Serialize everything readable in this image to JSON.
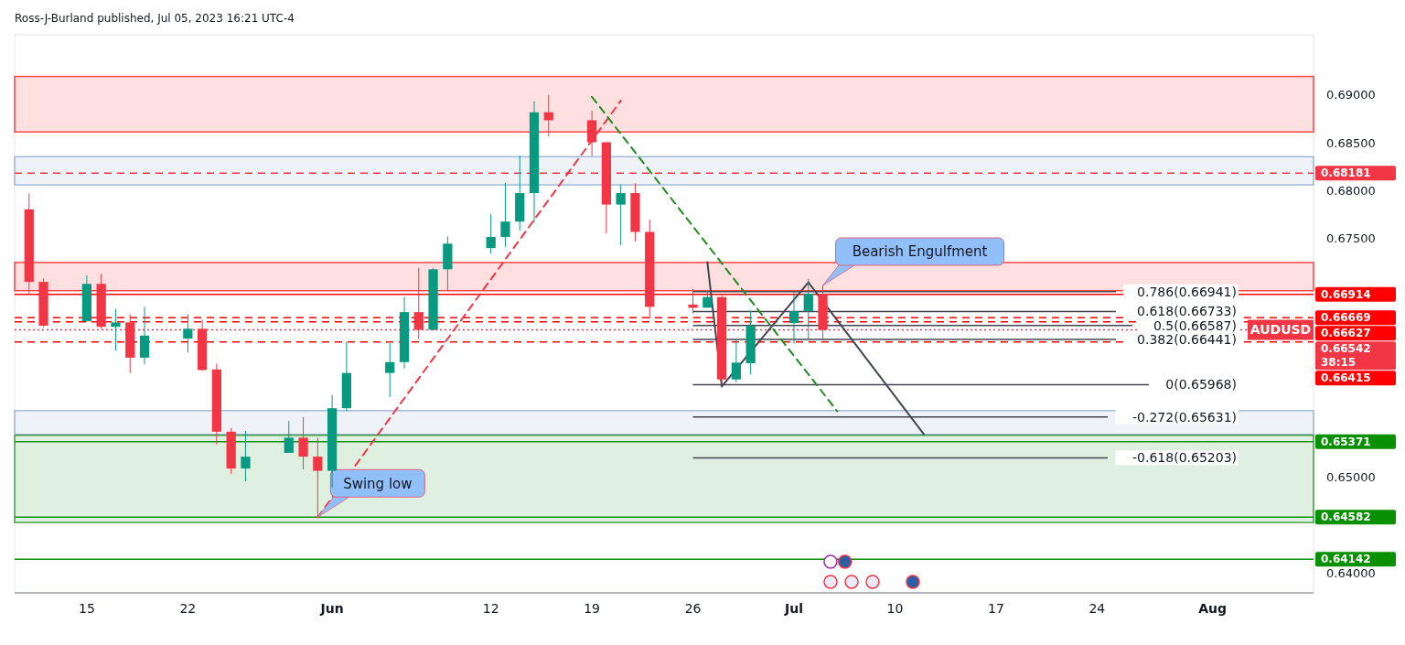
{
  "chart_data": {
    "type": "candlestick",
    "title": "Ross-J-Burland published, Jul 05, 2023 16:21 UTC-4",
    "x": [
      "2023-05-11",
      "2023-05-12",
      "2023-05-15",
      "2023-05-16",
      "2023-05-17",
      "2023-05-18",
      "2023-05-19",
      "2023-05-22",
      "2023-05-23",
      "2023-05-24",
      "2023-05-25",
      "2023-05-26",
      "2023-05-29",
      "2023-05-30",
      "2023-05-31",
      "2023-06-01",
      "2023-06-02",
      "2023-06-05",
      "2023-06-06",
      "2023-06-07",
      "2023-06-08",
      "2023-06-09",
      "2023-06-12",
      "2023-06-13",
      "2023-06-14",
      "2023-06-15",
      "2023-06-16",
      "2023-06-19",
      "2023-06-20",
      "2023-06-21",
      "2023-06-22",
      "2023-06-23",
      "2023-06-26",
      "2023-06-27",
      "2023-06-28",
      "2023-06-29",
      "2023-06-30",
      "2023-07-03",
      "2023-07-04",
      "2023-07-05"
    ],
    "ohlc": [
      [
        0.67803,
        0.67973,
        0.66922,
        0.67044
      ],
      [
        0.67044,
        0.67081,
        0.66571,
        0.66586
      ],
      [
        0.66632,
        0.67112,
        0.66626,
        0.67023
      ],
      [
        0.67023,
        0.67127,
        0.66553,
        0.66574
      ],
      [
        0.66574,
        0.66761,
        0.66322,
        0.6662
      ],
      [
        0.6662,
        0.66706,
        0.66091,
        0.66251
      ],
      [
        0.66251,
        0.66783,
        0.66183,
        0.66482
      ],
      [
        0.66451,
        0.66706,
        0.66306,
        0.66553
      ],
      [
        0.66553,
        0.6665,
        0.66113,
        0.66122
      ],
      [
        0.66128,
        0.66189,
        0.65344,
        0.65476
      ],
      [
        0.65476,
        0.65513,
        0.65036,
        0.65091
      ],
      [
        0.65091,
        0.65485,
        0.64959,
        0.65215
      ],
      [
        0.65255,
        0.65589,
        0.65255,
        0.65414
      ],
      [
        0.65414,
        0.6563,
        0.65082,
        0.65215
      ],
      [
        0.65215,
        0.65414,
        0.64582,
        0.65067
      ],
      [
        0.65067,
        0.65861,
        0.64892,
        0.65722
      ],
      [
        0.65722,
        0.6642,
        0.65691,
        0.66091
      ],
      [
        0.66091,
        0.66408,
        0.65839,
        0.66205
      ],
      [
        0.66205,
        0.66885,
        0.66137,
        0.66728
      ],
      [
        0.66728,
        0.67192,
        0.66445,
        0.66543
      ],
      [
        0.66543,
        0.6719,
        0.66535,
        0.67176
      ],
      [
        0.67176,
        0.67521,
        0.66958,
        0.67444
      ],
      [
        0.67398,
        0.67752,
        0.67337,
        0.67515
      ],
      [
        0.67515,
        0.6808,
        0.67407,
        0.67675
      ],
      [
        0.67675,
        0.68366,
        0.67582,
        0.67973
      ],
      [
        0.67973,
        0.68935,
        0.67665,
        0.68819
      ],
      [
        0.68819,
        0.69,
        0.68566,
        0.68735
      ],
      [
        0.68735,
        0.68834,
        0.68361,
        0.68505
      ],
      [
        0.68505,
        0.68505,
        0.67552,
        0.67853
      ],
      [
        0.67853,
        0.68065,
        0.67429,
        0.67973
      ],
      [
        0.67973,
        0.68075,
        0.67469,
        0.67567
      ],
      [
        0.67567,
        0.67696,
        0.6666,
        0.66783
      ],
      [
        0.66807,
        0.66968,
        0.66712,
        0.66773
      ],
      [
        0.66774,
        0.66952,
        0.66774,
        0.66885
      ],
      [
        0.66885,
        0.66907,
        0.65968,
        0.66023
      ],
      [
        0.66023,
        0.66435,
        0.65993,
        0.66199
      ],
      [
        0.66193,
        0.66743,
        0.66076,
        0.66583
      ],
      [
        0.66614,
        0.66937,
        0.66399,
        0.66737
      ],
      [
        0.66737,
        0.67075,
        0.66445,
        0.66921
      ],
      [
        0.66921,
        0.67007,
        0.66445,
        0.66542
      ]
    ],
    "colors": [
      "#f23645",
      "#f23645",
      "#089981",
      "#f23645",
      "#089981",
      "#f23645",
      "#089981",
      "#089981",
      "#f23645",
      "#f23645",
      "#f23645",
      "#089981",
      "#089981",
      "#f23645",
      "#f23645",
      "#089981",
      "#089981",
      "#089981",
      "#089981",
      "#f23645",
      "#089981",
      "#089981",
      "#089981",
      "#089981",
      "#089981",
      "#089981",
      "#f23645",
      "#f23645",
      "#f23645",
      "#089981",
      "#f23645",
      "#f23645",
      "#f23645",
      "#089981",
      "#f23645",
      "#089981",
      "#089981",
      "#089981",
      "#089981",
      "#f23645"
    ],
    "series": [
      {
        "type": "line",
        "x": [
          "2023-05-31",
          "2023-06-21"
        ],
        "values": [
          0.6458,
          0.6894
        ],
        "color": "#f23645",
        "line_style": "dashed"
      },
      {
        "type": "line",
        "x": [
          "2023-06-19",
          "2023-07-06"
        ],
        "values": [
          0.6898,
          0.6569
        ],
        "color": "#1e8c1e",
        "line_style": "dashed"
      },
      {
        "type": "line",
        "x": [
          "2023-06-27",
          "2023-06-28",
          "2023-07-04",
          "2023-07-12"
        ],
        "values": [
          0.6725,
          0.6595,
          0.6704,
          0.6545
        ],
        "color": "#434651",
        "line_style": "solid"
      }
    ],
    "xlim": [
      "2023-05-10",
      "2023-08-08"
    ],
    "xticks": [
      {
        "value": "2023-05-15",
        "label": "15"
      },
      {
        "value": "2023-05-22",
        "label": "22"
      },
      {
        "value": "2023-06-01",
        "label": "Jun"
      },
      {
        "value": "2023-06-12",
        "label": "12"
      },
      {
        "value": "2023-06-19",
        "label": "19"
      },
      {
        "value": "2023-06-26",
        "label": "26"
      },
      {
        "value": "2023-07-03",
        "label": "Jul"
      },
      {
        "value": "2023-07-10",
        "label": "10"
      },
      {
        "value": "2023-07-17",
        "label": "17"
      },
      {
        "value": "2023-07-24",
        "label": "24"
      },
      {
        "value": "2023-08-01",
        "label": "Aug"
      }
    ],
    "ylim": [
      0.6379,
      0.6963
    ],
    "yticks": [
      {
        "value": 0.64,
        "label": "0.64000"
      },
      {
        "value": 0.65,
        "label": "0.65000"
      },
      {
        "value": 0.675,
        "label": "0.67500"
      },
      {
        "value": 0.68,
        "label": "0.68000"
      },
      {
        "value": 0.685,
        "label": "0.68500"
      },
      {
        "value": 0.69,
        "label": "0.69000"
      }
    ],
    "bands": [
      {
        "axis": "y",
        "from": 0.68613,
        "to": 0.69194,
        "color": "#ff0000"
      },
      {
        "axis": "y",
        "from": 0.68059,
        "to": 0.68354,
        "color": "#7f9fc4"
      },
      {
        "axis": "y",
        "from": 0.66952,
        "to": 0.67247,
        "color": "#ff0000"
      },
      {
        "axis": "y",
        "from": 0.65448,
        "to": 0.65697,
        "color": "#7f9fc4"
      },
      {
        "axis": "y",
        "from": 0.64526,
        "to": 0.65439,
        "color": "#008000"
      }
    ],
    "ref_lines": [
      {
        "axis": "y",
        "value": 0.68181,
        "label": "0.68181",
        "color": "#f23645",
        "line_style": "dashed"
      },
      {
        "axis": "y",
        "value": 0.66914,
        "label": "0.66914",
        "color": "#ff0000",
        "line_style": "solid"
      },
      {
        "axis": "y",
        "value": 0.66669,
        "label": "0.66669",
        "color": "#ff0000",
        "line_style": "dashed"
      },
      {
        "axis": "y",
        "value": 0.66627,
        "label": "0.66627",
        "color": "#ff0000",
        "line_style": "dashed"
      },
      {
        "axis": "y",
        "value": 0.66542,
        "label": "0.66542 38:15",
        "color": "#f23645",
        "line_style": "dotted"
      },
      {
        "axis": "y",
        "value": 0.66415,
        "label": "0.66415",
        "color": "#ff0000",
        "line_style": "dashed"
      },
      {
        "axis": "y",
        "value": 0.65371,
        "label": "0.65371",
        "color": "#089000",
        "line_style": "solid"
      },
      {
        "axis": "y",
        "value": 0.64582,
        "label": "0.64582",
        "color": "#089000",
        "line_style": "solid"
      },
      {
        "axis": "y",
        "value": 0.64142,
        "label": "0.64142",
        "color": "#089000",
        "line_style": "solid"
      },
      {
        "axis": "y",
        "value": 0.66941,
        "label": "0.786(0.66941)",
        "color": "#434651",
        "line_style": "solid"
      },
      {
        "axis": "y",
        "value": 0.66733,
        "label": "0.618(0.66733)",
        "color": "#434651",
        "line_style": "solid"
      },
      {
        "axis": "y",
        "value": 0.66587,
        "label": "0.5(0.66587)",
        "color": "#434651",
        "line_style": "solid"
      },
      {
        "axis": "y",
        "value": 0.66441,
        "label": "0.382(0.66441)",
        "color": "#434651",
        "line_style": "solid"
      },
      {
        "axis": "y",
        "value": 0.65968,
        "label": "0(0.65968)",
        "color": "#434651",
        "line_style": "solid"
      },
      {
        "axis": "y",
        "value": 0.65631,
        "label": "-0.272(0.65631)",
        "color": "#434651",
        "line_style": "solid"
      },
      {
        "axis": "y",
        "value": 0.65203,
        "label": "-0.618(0.65203)",
        "color": "#434651",
        "line_style": "solid"
      }
    ],
    "annotations": [
      {
        "text": "Bearish Engulfment",
        "x": "2023-07-05",
        "y": 0.67007
      },
      {
        "text": "Swing low",
        "x": "2023-05-31",
        "y": 0.64582
      },
      {
        "text": "AUDUSD",
        "x": "2023-08-08",
        "y": 0.66542
      }
    ]
  }
}
